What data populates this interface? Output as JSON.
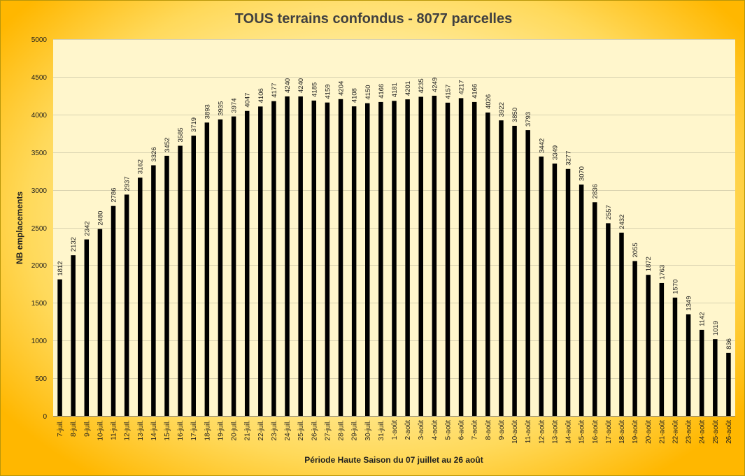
{
  "chart_data": {
    "type": "bar",
    "title": "TOUS terrains confondus - 8077 parcelles",
    "xlabel": "Période Haute Saison du 07  juillet au 26 août",
    "ylabel": "NB emplacements",
    "ylim": [
      0,
      5000
    ],
    "yticks": [
      0,
      500,
      1000,
      1500,
      2000,
      2500,
      3000,
      3500,
      4000,
      4500,
      5000
    ],
    "grid": true,
    "legend": "none",
    "bar_color": "#000000",
    "plot_background": "#fff6cc",
    "categories": [
      "7-juil.",
      "8-juil.",
      "9-juil.",
      "10-juil.",
      "11-juil.",
      "12-juil.",
      "13-juil.",
      "14-juil.",
      "15-juil.",
      "16-juil.",
      "17-juil.",
      "18-juil.",
      "19-juil.",
      "20-juil.",
      "21-juil.",
      "22-juil.",
      "23-juil.",
      "24-juil.",
      "25-juil.",
      "26-juil.",
      "27-juil.",
      "28-juil.",
      "29-juil.",
      "30-juil.",
      "31-juil.",
      "1-août",
      "2-août",
      "3-août",
      "4-août",
      "5-août",
      "6-août",
      "7-août",
      "8-août",
      "9-août",
      "10-août",
      "11-août",
      "12-août",
      "13-août",
      "14-août",
      "15-août",
      "16-août",
      "17-août",
      "18-août",
      "19-août",
      "20-août",
      "21-août",
      "22-août",
      "23-août",
      "24-août",
      "25-août",
      "26-août"
    ],
    "values": [
      1812,
      2132,
      2342,
      2480,
      2786,
      2937,
      3162,
      3326,
      3452,
      3585,
      3719,
      3893,
      3935,
      3974,
      4047,
      4106,
      4177,
      4240,
      4240,
      4185,
      4159,
      4204,
      4108,
      4150,
      4166,
      4181,
      4201,
      4235,
      4249,
      4157,
      4217,
      4166,
      4026,
      3922,
      3850,
      3793,
      3442,
      3349,
      3277,
      3070,
      2836,
      2557,
      2432,
      2055,
      1872,
      1763,
      1570,
      1349,
      1142,
      1019,
      836
    ]
  }
}
